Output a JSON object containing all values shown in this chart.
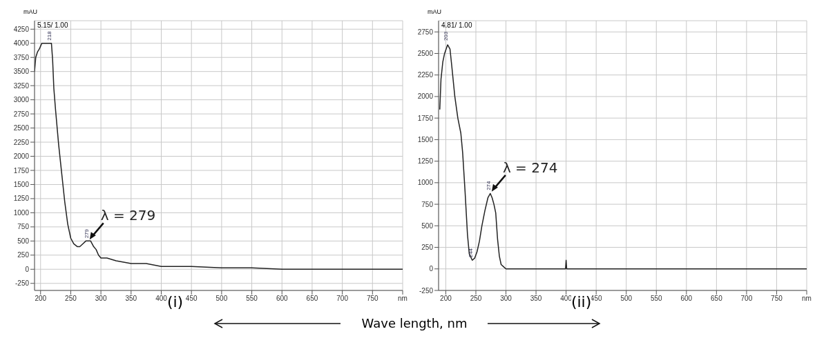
{
  "chart_data": [
    {
      "type": "line",
      "ylabel": "mAU",
      "xlabel": "Wave length, nm",
      "xlim": [
        190,
        800
      ],
      "ylim": [
        -375,
        4400
      ],
      "xticks": [
        200,
        250,
        300,
        350,
        400,
        450,
        500,
        550,
        600,
        650,
        700,
        750,
        {
          "value": 800,
          "label": "nm"
        }
      ],
      "yticks": [
        -250,
        0,
        250,
        500,
        750,
        1000,
        1250,
        1500,
        1750,
        2000,
        2250,
        2500,
        2750,
        3000,
        3250,
        3500,
        3750,
        4000,
        4250
      ],
      "grid": true,
      "marker": "none",
      "line_style": "solid",
      "series": [
        {
          "color": "#222222",
          "x": [
            190,
            192,
            195,
            198,
            200,
            202,
            210,
            218,
            220,
            222,
            225,
            230,
            235,
            240,
            245,
            250,
            255,
            261,
            265,
            270,
            275,
            279,
            283,
            288,
            292,
            296,
            300,
            310,
            325,
            350,
            375,
            400,
            420,
            450,
            500,
            550,
            600,
            650,
            700,
            750,
            800
          ],
          "values": [
            3500,
            3750,
            3850,
            3900,
            3950,
            4000,
            4000,
            4000,
            3700,
            3200,
            2800,
            2200,
            1700,
            1200,
            800,
            550,
            450,
            400,
            400,
            450,
            500,
            500,
            500,
            400,
            350,
            250,
            200,
            200,
            150,
            100,
            100,
            50,
            50,
            50,
            25,
            25,
            0,
            0,
            0,
            0,
            0
          ]
        }
      ],
      "annotations": [
        {
          "text": "218",
          "x": 218,
          "y": 4000
        },
        {
          "text": "279",
          "x": 279,
          "y": 500
        },
        {
          "text": "λ = 279",
          "x": 279,
          "y": 500
        },
        "5.15/ 1.00",
        "(i)"
      ]
    },
    {
      "type": "line",
      "ylabel": "mAU",
      "xlim": [
        188,
        800
      ],
      "ylim": [
        -250,
        2880
      ],
      "xticks": [
        200,
        250,
        300,
        350,
        400,
        450,
        500,
        550,
        600,
        650,
        700,
        750,
        {
          "value": 800,
          "label": "nm"
        }
      ],
      "yticks": [
        -250,
        0,
        250,
        500,
        750,
        1000,
        1250,
        1500,
        1750,
        2000,
        2250,
        2500,
        2750
      ],
      "grid": true,
      "marker": "none",
      "line_style": "solid",
      "series": [
        {
          "color": "#222222",
          "x": [
            190,
            192,
            195,
            198,
            203,
            207,
            210,
            215,
            220,
            225,
            228,
            232,
            236,
            239,
            244,
            248,
            252,
            256,
            260,
            265,
            270,
            274,
            277,
            280,
            283,
            286,
            289,
            292,
            296,
            300,
            350,
            399,
            400,
            401,
            500,
            600,
            700,
            800
          ],
          "values": [
            1850,
            2200,
            2400,
            2500,
            2600,
            2550,
            2350,
            2000,
            1750,
            1575,
            1350,
            900,
            400,
            175,
            100,
            125,
            200,
            325,
            500,
            675,
            825,
            875,
            825,
            750,
            650,
            350,
            150,
            50,
            25,
            0,
            0,
            0,
            100,
            0,
            0,
            0,
            0,
            0
          ]
        }
      ],
      "annotations": [
        {
          "text": "203",
          "x": 203,
          "y": 2615
        },
        {
          "text": "244",
          "x": 244,
          "y": 100
        },
        {
          "text": "274",
          "x": 274,
          "y": 880
        },
        {
          "text": "λ = 274",
          "x": 274,
          "y": 880
        },
        "4.81/ 1.00",
        "(ii)"
      ]
    }
  ]
}
